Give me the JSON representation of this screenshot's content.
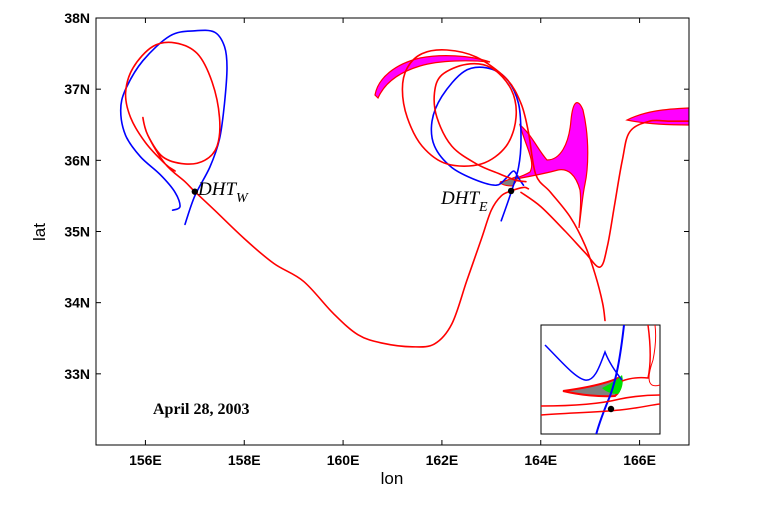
{
  "chart_data": {
    "type": "line",
    "title": "",
    "xlabel": "lon",
    "ylabel": "lat",
    "xlim": [
      155,
      167
    ],
    "ylim": [
      32,
      38
    ],
    "x_ticks": [
      156,
      158,
      160,
      162,
      164,
      166
    ],
    "x_tick_labels": [
      "156E",
      "158E",
      "160E",
      "162E",
      "164E",
      "166E"
    ],
    "y_ticks": [
      33,
      34,
      35,
      36,
      37,
      38
    ],
    "y_tick_labels": [
      "33N",
      "34N",
      "35N",
      "36N",
      "37N",
      "38N"
    ],
    "grid": false,
    "colors": {
      "stable_manifold": "#0000ff",
      "unstable_manifold": "#ff0000",
      "lobe_fill": "#ff00ff",
      "inset_lobe_gray": "#808080",
      "inset_lobe_green": "#00cc00"
    },
    "annotations": [
      {
        "id": "dht-w",
        "text": "DHT",
        "subscript": "W",
        "x": 157.1,
        "y": 35.35
      },
      {
        "id": "dht-e",
        "text": "DHT",
        "subscript": "E",
        "x": 163.15,
        "y": 35.25
      },
      {
        "id": "date",
        "text": "April 28, 2003",
        "x": 156.2,
        "y": 32.5
      }
    ],
    "points": [
      {
        "name": "DHT_W",
        "x": 157.0,
        "y": 35.56
      },
      {
        "name": "DHT_E",
        "x": 163.4,
        "y": 35.57
      }
    ],
    "series": [
      {
        "kind": "stable",
        "color": "#0000ff",
        "x": [
          156.8,
          157.0,
          157.3,
          157.5,
          157.6,
          157.65,
          157.6,
          157.4,
          157.0,
          156.5,
          155.95,
          155.6,
          155.5,
          155.6,
          155.9,
          156.3,
          156.6,
          156.7,
          156.55
        ],
        "y": [
          35.1,
          35.5,
          35.9,
          36.3,
          36.8,
          37.3,
          37.6,
          37.8,
          37.82,
          37.75,
          37.4,
          37.0,
          36.7,
          36.35,
          36.05,
          35.8,
          35.55,
          35.35,
          35.3
        ]
      },
      {
        "kind": "unstable",
        "color": "#ff0000",
        "x": [
          156.6,
          156.4,
          156.0,
          155.7,
          155.6,
          155.75,
          156.15,
          156.6,
          157.05,
          157.35,
          157.5,
          157.45,
          157.2,
          156.8,
          156.35,
          156.05,
          155.95,
          156.05,
          156.4,
          156.8,
          157.0,
          157.4,
          158.0,
          158.6,
          159.2,
          159.8,
          160.3,
          160.8,
          161.4,
          161.85,
          162.2,
          162.5,
          162.8,
          163.0,
          163.2,
          163.4,
          163.65,
          163.75
        ],
        "y": [
          35.85,
          35.95,
          36.25,
          36.6,
          36.95,
          37.3,
          37.6,
          37.65,
          37.5,
          37.1,
          36.6,
          36.2,
          36.0,
          35.95,
          36.05,
          36.35,
          36.6,
          36.35,
          35.95,
          35.7,
          35.56,
          35.3,
          34.9,
          34.55,
          34.3,
          33.85,
          33.55,
          33.43,
          33.38,
          33.42,
          33.7,
          34.3,
          34.9,
          35.3,
          35.5,
          35.57,
          35.62,
          35.6
        ]
      },
      {
        "kind": "stable",
        "color": "#0000ff",
        "x": [
          163.2,
          163.4,
          163.55,
          163.6,
          163.55,
          163.3,
          162.9,
          162.45,
          162.0,
          161.8,
          161.85,
          162.2,
          162.7,
          163.1,
          163.3,
          163.45,
          163.55,
          163.65
        ],
        "y": [
          35.15,
          35.55,
          35.9,
          36.3,
          36.8,
          37.15,
          37.3,
          37.25,
          36.9,
          36.55,
          36.2,
          35.9,
          35.72,
          35.65,
          35.75,
          35.85,
          35.75,
          35.65
        ]
      },
      {
        "kind": "unstable",
        "color": "#ff0000",
        "x": [
          163.7,
          163.5,
          163.2,
          162.7,
          162.2,
          161.9,
          161.85,
          162.0,
          162.5,
          163.0,
          163.4,
          163.5,
          163.3,
          162.8,
          162.1,
          161.6,
          161.3,
          161.2,
          161.3,
          161.6,
          162.1,
          162.7,
          163.3,
          163.6,
          163.75,
          163.9,
          164.2,
          164.6,
          164.9,
          165.1,
          165.25,
          165.3
        ],
        "y": [
          35.7,
          35.72,
          35.8,
          35.95,
          36.2,
          36.6,
          36.95,
          37.2,
          37.35,
          37.3,
          37.0,
          36.6,
          36.2,
          35.95,
          35.95,
          36.2,
          36.6,
          37.0,
          37.3,
          37.5,
          37.55,
          37.45,
          37.15,
          36.8,
          36.4,
          35.8,
          35.55,
          35.2,
          34.8,
          34.4,
          34.0,
          33.75
        ]
      },
      {
        "kind": "unstable",
        "color": "#ff0000",
        "x": [
          163.6,
          164.0,
          164.5,
          164.9,
          165.2,
          165.35,
          165.5,
          165.65,
          165.8,
          166.2,
          166.6,
          167.0
        ],
        "y": [
          35.55,
          35.35,
          35.0,
          34.7,
          34.5,
          34.8,
          35.4,
          36.0,
          36.4,
          36.55,
          36.55,
          36.55
        ]
      }
    ],
    "inset": {
      "present": true,
      "shows": "zoom of DHT_E intersection with lobes"
    }
  }
}
